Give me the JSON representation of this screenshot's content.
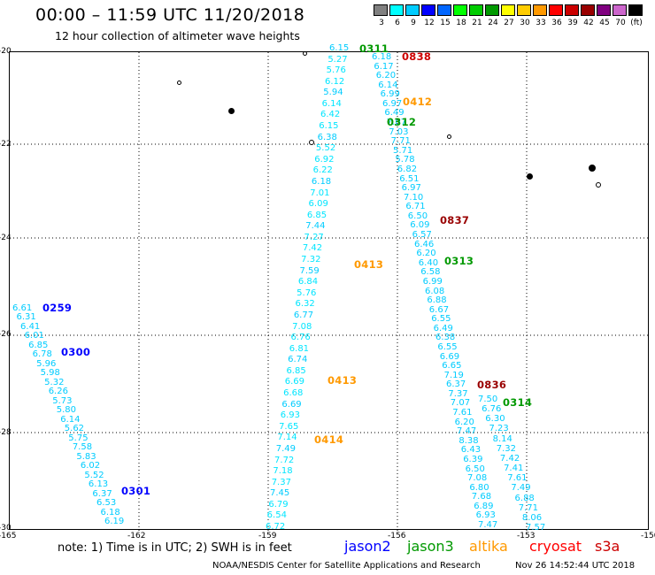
{
  "header": {
    "title": "00:00 – 11:59 UTC 11/20/2018",
    "subtitle": "12 hour collection of altimeter wave heights"
  },
  "colorbar": {
    "colors": [
      "#808080",
      "#00ffff",
      "#00ccff",
      "#0000ff",
      "#0066ff",
      "#00ff00",
      "#00cc00",
      "#009900",
      "#ffff00",
      "#ffcc00",
      "#ff9900",
      "#ff0000",
      "#cc0000",
      "#990000",
      "#800080",
      "#cc66cc",
      "#000000"
    ],
    "labels": [
      "3",
      "6",
      "9",
      "12",
      "15",
      "18",
      "21",
      "24",
      "27",
      "30",
      "33",
      "36",
      "39",
      "42",
      "45",
      "70",
      "(ft)"
    ]
  },
  "axes": {
    "x_ticks": [
      "-165",
      "-162",
      "-159",
      "-156",
      "-153",
      "-150"
    ],
    "y_ticks": [
      "-20",
      "-22",
      "-24",
      "-26",
      "-28",
      "-30"
    ]
  },
  "passes": [
    {
      "text": "0311",
      "color": "#009900"
    },
    {
      "text": "0838",
      "color": "#cc0000"
    },
    {
      "text": "0412",
      "color": "#ff9900"
    },
    {
      "text": "0312",
      "color": "#009900"
    },
    {
      "text": "0837",
      "color": "#990000"
    },
    {
      "text": "0313",
      "color": "#009900"
    },
    {
      "text": "0413",
      "color": "#ff9900"
    },
    {
      "text": "0413",
      "color": "#ff9900"
    },
    {
      "text": "0414",
      "color": "#ff9900"
    },
    {
      "text": "0836",
      "color": "#990000"
    },
    {
      "text": "0314",
      "color": "#009900"
    },
    {
      "text": "0259",
      "color": "#0000ff"
    },
    {
      "text": "0300",
      "color": "#0000ff"
    },
    {
      "text": "0301",
      "color": "#0000ff"
    }
  ],
  "wave_labels": {
    "track_a": [
      "6.61",
      "6.31",
      "6.41",
      "6.01",
      "6.85",
      "6.78",
      "5.96",
      "5.98",
      "5.32",
      "6.26",
      "5.73",
      "5.80",
      "6.14",
      "5.62",
      "5.75",
      "7.58",
      "5.83",
      "6.02",
      "5.52",
      "6.13",
      "6.37",
      "6.53",
      "6.18",
      "6.19"
    ],
    "track_b": [
      "6.15",
      "5.27",
      "5.76",
      "6.12",
      "5.94",
      "6.14",
      "6.42",
      "6.15",
      "6.38",
      "5.52",
      "6.92",
      "6.22",
      "6.18",
      "7.01",
      "6.09",
      "6.85",
      "7.44",
      "7.27",
      "7.42",
      "7.32",
      "7.59",
      "6.84",
      "5.76",
      "6.32",
      "6.77",
      "7.08",
      "6.76",
      "6.81",
      "6.74",
      "6.85",
      "6.69",
      "6.68",
      "6.69",
      "6.93",
      "7.65",
      "7.14",
      "7.49",
      "7.72",
      "7.18",
      "7.37",
      "7.45",
      "6.79",
      "6.54",
      "6.72"
    ],
    "track_c": [
      "6.18",
      "6.17",
      "6.20",
      "6.14",
      "6.99",
      "6.97",
      "6.49",
      "7.07",
      "7.03",
      "7.71",
      "5.71",
      "5.78",
      "6.82",
      "6.51",
      "6.97",
      "7.10",
      "6.71",
      "6.50",
      "6.09",
      "6.57",
      "6.46",
      "6.20",
      "6.40",
      "6.58",
      "6.99",
      "6.08",
      "6.88",
      "6.67",
      "6.55",
      "6.49",
      "6.38",
      "6.55",
      "6.69",
      "6.65",
      "7.19",
      "6.37",
      "7.37",
      "7.07",
      "7.61",
      "6.20",
      "7.47",
      "8.38",
      "6.43",
      "6.39",
      "6.50",
      "7.08",
      "6.80",
      "7.68",
      "6.89",
      "6.93",
      "7.47"
    ],
    "track_d": [
      "7.50",
      "6.76",
      "6.30",
      "7.23",
      "8.14",
      "7.32",
      "7.42",
      "7.41",
      "7.61",
      "7.49",
      "6.88",
      "7.71",
      "8.06",
      "7.57"
    ]
  },
  "footer": {
    "note": "note:  1) Time is in UTC;  2) SWH is in feet",
    "legend": [
      {
        "text": "jason2",
        "color": "#0000ff"
      },
      {
        "text": "jason3",
        "color": "#009900"
      },
      {
        "text": "altika",
        "color": "#ff9900"
      },
      {
        "text": "cryosat",
        "color": "#ff0000"
      },
      {
        "text": "s3a",
        "color": "#cc0000"
      }
    ],
    "credit": "NOAA/NESDIS Center for Satellite Applications and Research",
    "timestamp": "Nov 26 14:52:44 UTC 2018"
  }
}
